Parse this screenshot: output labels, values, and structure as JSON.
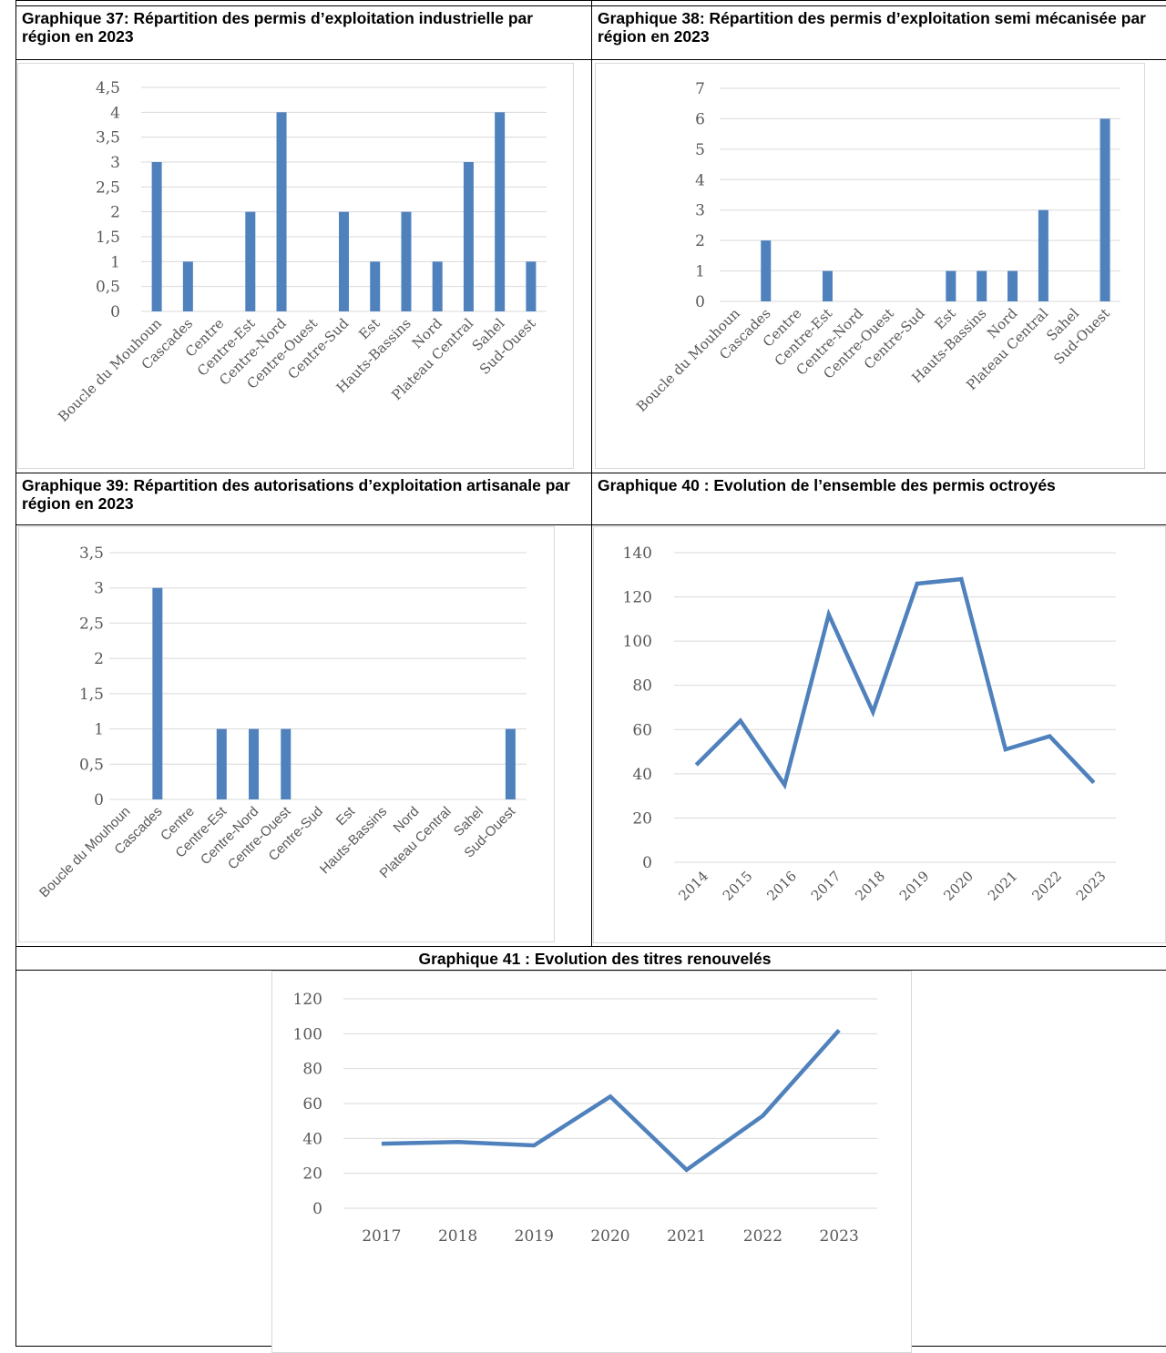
{
  "charts": [
    {
      "title": "Graphique 37: Répartition des permis d’exploitation industrielle par région en 2023",
      "chart_data": {
        "type": "bar",
        "categories": [
          "Boucle du Mouhoun",
          "Cascades",
          "Centre",
          "Centre-Est",
          "Centre-Nord",
          "Centre-Ouest",
          "Centre-Sud",
          "Est",
          "Hauts-Bassins",
          "Nord",
          "Plateau Central",
          "Sahel",
          "Sud-Ouest"
        ],
        "values": [
          3,
          1,
          0,
          2,
          4,
          0,
          2,
          1,
          2,
          1,
          3,
          4,
          1
        ],
        "yticks": [
          "0",
          "0,5",
          "1",
          "1,5",
          "2",
          "2,5",
          "3",
          "3,5",
          "4",
          "4,5"
        ],
        "ylim": [
          0,
          4.5
        ],
        "grid": true,
        "color": "#4F81BD"
      }
    },
    {
      "title": "Graphique 38: Répartition des permis d’exploitation semi mécanisée par région en 2023",
      "chart_data": {
        "type": "bar",
        "categories": [
          "Boucle du Mouhoun",
          "Cascades",
          "Centre",
          "Centre-Est",
          "Centre-Nord",
          "Centre-Ouest",
          "Centre-Sud",
          "Est",
          "Hauts-Bassins",
          "Nord",
          "Plateau Central",
          "Sahel",
          "Sud-Ouest"
        ],
        "values": [
          0,
          2,
          0,
          1,
          0,
          0,
          0,
          1,
          1,
          1,
          3,
          0,
          6
        ],
        "yticks": [
          "0",
          "1",
          "2",
          "3",
          "4",
          "5",
          "6",
          "7"
        ],
        "ylim": [
          0,
          7
        ],
        "grid": true,
        "color": "#4F81BD"
      }
    },
    {
      "title": "Graphique 39: Répartition des autorisations d’exploitation artisanale par région en 2023",
      "chart_data": {
        "type": "bar",
        "categories": [
          "Boucle du Mouhoun",
          "Cascades",
          "Centre",
          "Centre-Est",
          "Centre-Nord",
          "Centre-Ouest",
          "Centre-Sud",
          "Est",
          "Hauts-Bassins",
          "Nord",
          "Plateau Central",
          "Sahel",
          "Sud-Ouest"
        ],
        "values": [
          0,
          3,
          0,
          1,
          1,
          1,
          0,
          0,
          0,
          0,
          0,
          0,
          1
        ],
        "yticks": [
          "0",
          "0,5",
          "1",
          "1,5",
          "2",
          "2,5",
          "3",
          "3,5"
        ],
        "ylim": [
          0,
          3.5
        ],
        "grid": true,
        "color": "#4F81BD"
      }
    },
    {
      "title": "Graphique 40 : Evolution de l’ensemble des permis octroyés",
      "chart_data": {
        "type": "line",
        "x": [
          "2014",
          "2015",
          "2016",
          "2017",
          "2018",
          "2019",
          "2020",
          "2021",
          "2022",
          "2023"
        ],
        "values": [
          44,
          64,
          35,
          112,
          68,
          126,
          128,
          51,
          57,
          36
        ],
        "yticks": [
          "0",
          "20",
          "40",
          "60",
          "80",
          "100",
          "120",
          "140"
        ],
        "ylim": [
          0,
          140
        ],
        "grid": true,
        "color": "#4F81BD"
      }
    },
    {
      "title": "Graphique 41 : Evolution des titres renouvelés",
      "chart_data": {
        "type": "line",
        "x": [
          "2017",
          "2018",
          "2019",
          "2020",
          "2021",
          "2022",
          "2023"
        ],
        "values": [
          37,
          38,
          36,
          64,
          22,
          53,
          102
        ],
        "yticks": [
          "0",
          "20",
          "40",
          "60",
          "80",
          "100",
          "120"
        ],
        "ylim": [
          0,
          120
        ],
        "grid": true,
        "color": "#4F81BD"
      }
    }
  ]
}
